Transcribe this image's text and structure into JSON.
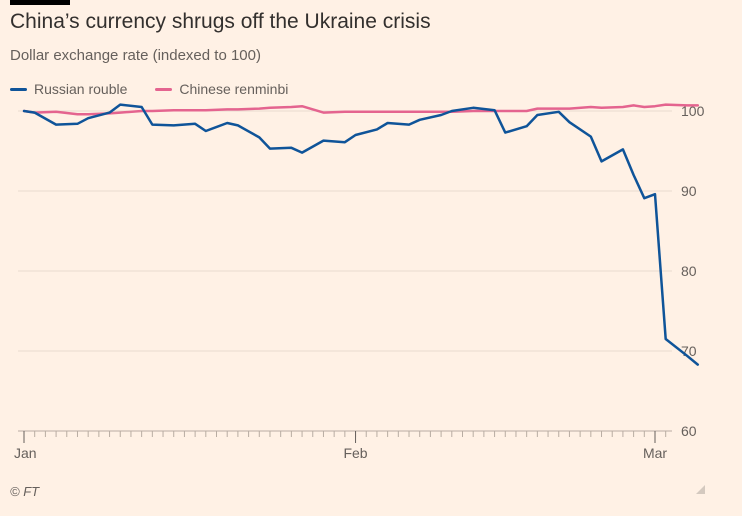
{
  "brand": {
    "source": "© FT"
  },
  "colors": {
    "background": "#fff1e5",
    "rouble": "#0f5499",
    "renminbi": "#e4648f",
    "grid": "#eadbd0",
    "axis": "#b8aca2",
    "text": "#66605c"
  },
  "chart_data": {
    "type": "line",
    "title": "China’s currency shrugs off the Ukraine crisis",
    "subtitle": "Dollar exchange rate (indexed to 100)",
    "xlabel": "",
    "ylabel": "",
    "x_range": [
      "2022-01-01",
      "2022-03-02"
    ],
    "x_ticks": [
      {
        "date": "2022-01-01",
        "label": "Jan"
      },
      {
        "date": "2022-02-01",
        "label": "Feb"
      },
      {
        "date": "2022-03-01",
        "label": "Mar"
      }
    ],
    "ylim": [
      60,
      100
    ],
    "y_ticks": [
      60,
      70,
      80,
      90,
      100
    ],
    "y_axis_position": "right",
    "grid": true,
    "legend_position": "top-left",
    "series": [
      {
        "name": "Russian rouble",
        "color": "#0f5499",
        "points": [
          [
            "2022-01-01",
            100.0
          ],
          [
            "2022-01-02",
            99.8
          ],
          [
            "2022-01-04",
            98.3
          ],
          [
            "2022-01-06",
            98.4
          ],
          [
            "2022-01-07",
            99.1
          ],
          [
            "2022-01-09",
            99.8
          ],
          [
            "2022-01-10",
            100.8
          ],
          [
            "2022-01-12",
            100.5
          ],
          [
            "2022-01-13",
            98.3
          ],
          [
            "2022-01-15",
            98.2
          ],
          [
            "2022-01-17",
            98.4
          ],
          [
            "2022-01-18",
            97.5
          ],
          [
            "2022-01-20",
            98.5
          ],
          [
            "2022-01-21",
            98.2
          ],
          [
            "2022-01-23",
            96.7
          ],
          [
            "2022-01-24",
            95.3
          ],
          [
            "2022-01-26",
            95.4
          ],
          [
            "2022-01-27",
            94.8
          ],
          [
            "2022-01-29",
            96.3
          ],
          [
            "2022-01-31",
            96.1
          ],
          [
            "2022-02-01",
            97.0
          ],
          [
            "2022-02-03",
            97.7
          ],
          [
            "2022-02-04",
            98.5
          ],
          [
            "2022-02-06",
            98.3
          ],
          [
            "2022-02-07",
            98.9
          ],
          [
            "2022-02-09",
            99.5
          ],
          [
            "2022-02-10",
            100.0
          ],
          [
            "2022-02-12",
            100.4
          ],
          [
            "2022-02-14",
            100.1
          ],
          [
            "2022-02-15",
            97.3
          ],
          [
            "2022-02-17",
            98.1
          ],
          [
            "2022-02-18",
            99.5
          ],
          [
            "2022-02-20",
            99.9
          ],
          [
            "2022-02-21",
            98.6
          ],
          [
            "2022-02-23",
            96.8
          ],
          [
            "2022-02-24",
            93.7
          ],
          [
            "2022-02-26",
            95.2
          ],
          [
            "2022-02-27",
            92.0
          ],
          [
            "2022-02-28",
            89.1
          ],
          [
            "2022-03-01",
            89.6
          ],
          [
            "2022-03-02",
            71.5
          ],
          [
            "2022-03-04",
            69.4
          ],
          [
            "2022-03-05",
            68.3
          ]
        ]
      },
      {
        "name": "Chinese renminbi",
        "color": "#e4648f",
        "points": [
          [
            "2022-01-01",
            100.0
          ],
          [
            "2022-01-02",
            99.8
          ],
          [
            "2022-01-04",
            99.9
          ],
          [
            "2022-01-06",
            99.6
          ],
          [
            "2022-01-07",
            99.6
          ],
          [
            "2022-01-09",
            99.7
          ],
          [
            "2022-01-10",
            99.8
          ],
          [
            "2022-01-12",
            100.0
          ],
          [
            "2022-01-13",
            100.0
          ],
          [
            "2022-01-15",
            100.1
          ],
          [
            "2022-01-17",
            100.1
          ],
          [
            "2022-01-18",
            100.1
          ],
          [
            "2022-01-20",
            100.2
          ],
          [
            "2022-01-21",
            100.2
          ],
          [
            "2022-01-23",
            100.3
          ],
          [
            "2022-01-24",
            100.4
          ],
          [
            "2022-01-26",
            100.5
          ],
          [
            "2022-01-27",
            100.6
          ],
          [
            "2022-01-29",
            99.8
          ],
          [
            "2022-01-31",
            99.9
          ],
          [
            "2022-02-01",
            99.9
          ],
          [
            "2022-02-03",
            99.9
          ],
          [
            "2022-02-04",
            99.9
          ],
          [
            "2022-02-06",
            99.9
          ],
          [
            "2022-02-07",
            99.9
          ],
          [
            "2022-02-09",
            99.9
          ],
          [
            "2022-02-10",
            99.9
          ],
          [
            "2022-02-12",
            100.0
          ],
          [
            "2022-02-14",
            100.0
          ],
          [
            "2022-02-15",
            100.0
          ],
          [
            "2022-02-17",
            100.0
          ],
          [
            "2022-02-18",
            100.3
          ],
          [
            "2022-02-20",
            100.3
          ],
          [
            "2022-02-21",
            100.3
          ],
          [
            "2022-02-23",
            100.5
          ],
          [
            "2022-02-24",
            100.4
          ],
          [
            "2022-02-26",
            100.5
          ],
          [
            "2022-02-27",
            100.7
          ],
          [
            "2022-02-28",
            100.5
          ],
          [
            "2022-03-01",
            100.6
          ],
          [
            "2022-03-02",
            100.8
          ],
          [
            "2022-03-04",
            100.7
          ],
          [
            "2022-03-05",
            100.7
          ]
        ]
      }
    ]
  }
}
